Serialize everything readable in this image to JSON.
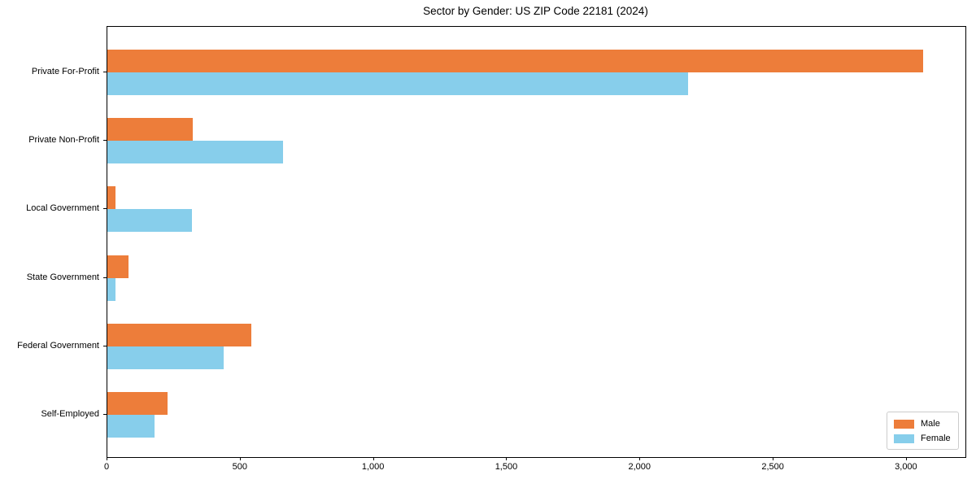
{
  "chart_data": {
    "type": "bar",
    "orientation": "horizontal",
    "title": "Sector by Gender: US ZIP Code 22181 (2024)",
    "xlabel": "",
    "ylabel": "",
    "categories": [
      "Private For-Profit",
      "Private Non-Profit",
      "Local Government",
      "State Government",
      "Federal Government",
      "Self-Employed"
    ],
    "series": [
      {
        "name": "Male",
        "color": "#ED7D3A",
        "values": [
          3060,
          320,
          30,
          80,
          540,
          225
        ]
      },
      {
        "name": "Female",
        "color": "#87CEEB",
        "values": [
          2180,
          660,
          318,
          30,
          437,
          178
        ]
      }
    ],
    "xlim": [
      0,
      3220
    ],
    "xticks": {
      "values": [
        0,
        500,
        1000,
        1500,
        2000,
        2500,
        3000
      ],
      "labels": [
        "0",
        "500",
        "1,000",
        "1,500",
        "2,000",
        "2,500",
        "3,000"
      ]
    },
    "grid": false,
    "legend": {
      "position": "lower right",
      "entries": [
        "Male",
        "Female"
      ]
    },
    "colors": {
      "male": "#ED7D3A",
      "female": "#87CEEB",
      "axis": "#000000",
      "legend_border": "#cccccc",
      "background": "#ffffff"
    }
  }
}
